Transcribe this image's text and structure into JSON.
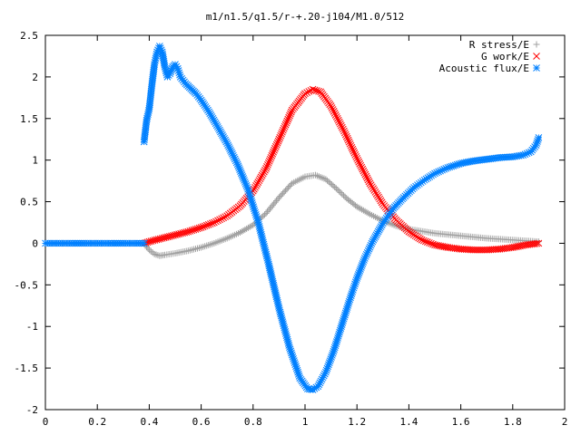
{
  "chart_data": {
    "type": "scatter",
    "title": "m1/n1.5/q1.5/r-+.20-j104/M1.0/512",
    "xlabel": "",
    "ylabel": "",
    "xlim": [
      0,
      2
    ],
    "ylim": [
      -2,
      2.5
    ],
    "grid": false,
    "legend_position": "top-right",
    "x_ticks": [
      "0",
      "0.2",
      "0.4",
      "0.6",
      "0.8",
      "1",
      "1.2",
      "1.4",
      "1.6",
      "1.8",
      "2"
    ],
    "x_tick_values": [
      0,
      0.2,
      0.4,
      0.6,
      0.8,
      1.0,
      1.2,
      1.4,
      1.6,
      1.8,
      2.0
    ],
    "y_ticks": [
      "2.5",
      "2",
      "1.5",
      "1",
      "0.5",
      "0",
      "-0.5",
      "-1",
      "-1.5",
      "-2"
    ],
    "y_tick_values": [
      2.5,
      2.0,
      1.5,
      1.0,
      0.5,
      0.0,
      -0.5,
      -1.0,
      -1.5,
      -2.0
    ],
    "series": [
      {
        "name": "R stress/E",
        "marker": "plus",
        "color": "#a0a0a0",
        "x": [
          0.38,
          0.4,
          0.42,
          0.44,
          0.46,
          0.5,
          0.55,
          0.6,
          0.65,
          0.7,
          0.75,
          0.8,
          0.85,
          0.9,
          0.95,
          1.0,
          1.04,
          1.08,
          1.12,
          1.16,
          1.2,
          1.25,
          1.3,
          1.35,
          1.4,
          1.5,
          1.6,
          1.7,
          1.8,
          1.9
        ],
        "y": [
          0.0,
          -0.08,
          -0.13,
          -0.15,
          -0.14,
          -0.12,
          -0.09,
          -0.05,
          0.0,
          0.06,
          0.13,
          0.22,
          0.36,
          0.55,
          0.72,
          0.8,
          0.82,
          0.77,
          0.66,
          0.54,
          0.44,
          0.35,
          0.27,
          0.21,
          0.17,
          0.12,
          0.09,
          0.06,
          0.04,
          0.02
        ]
      },
      {
        "name": "G work/E",
        "marker": "cross",
        "color": "#ff0000",
        "x": [
          0.38,
          0.4,
          0.45,
          0.5,
          0.55,
          0.6,
          0.65,
          0.7,
          0.75,
          0.8,
          0.85,
          0.9,
          0.95,
          1.0,
          1.03,
          1.06,
          1.1,
          1.15,
          1.2,
          1.25,
          1.3,
          1.35,
          1.4,
          1.45,
          1.5,
          1.55,
          1.6,
          1.65,
          1.7,
          1.75,
          1.8,
          1.85,
          1.9
        ],
        "y": [
          0.0,
          0.02,
          0.06,
          0.1,
          0.14,
          0.19,
          0.25,
          0.33,
          0.45,
          0.63,
          0.9,
          1.25,
          1.6,
          1.8,
          1.85,
          1.82,
          1.65,
          1.35,
          1.02,
          0.72,
          0.47,
          0.28,
          0.14,
          0.04,
          -0.02,
          -0.05,
          -0.07,
          -0.08,
          -0.08,
          -0.07,
          -0.05,
          -0.02,
          0.0
        ]
      },
      {
        "name": "Acoustic flux/E",
        "marker": "star",
        "color": "#0080ff",
        "x": [
          0.0,
          0.05,
          0.1,
          0.15,
          0.2,
          0.25,
          0.3,
          0.35,
          0.38,
          0.39,
          0.4,
          0.41,
          0.42,
          0.43,
          0.44,
          0.45,
          0.46,
          0.47,
          0.48,
          0.49,
          0.5,
          0.51,
          0.52,
          0.54,
          0.56,
          0.58,
          0.6,
          0.63,
          0.66,
          0.7,
          0.74,
          0.78,
          0.82,
          0.86,
          0.9,
          0.94,
          0.98,
          1.01,
          1.03,
          1.05,
          1.08,
          1.11,
          1.14,
          1.17,
          1.2,
          1.23,
          1.26,
          1.3,
          1.34,
          1.38,
          1.42,
          1.46,
          1.5,
          1.55,
          1.6,
          1.65,
          1.7,
          1.75,
          1.8,
          1.84,
          1.87,
          1.89,
          1.9
        ],
        "y": [
          0.0,
          0.0,
          0.0,
          0.0,
          0.0,
          0.0,
          0.0,
          0.0,
          1.22,
          1.48,
          1.62,
          1.9,
          2.15,
          2.3,
          2.37,
          2.3,
          2.12,
          2.0,
          2.04,
          2.12,
          2.15,
          2.1,
          2.0,
          1.92,
          1.86,
          1.8,
          1.72,
          1.58,
          1.42,
          1.2,
          0.95,
          0.65,
          0.25,
          -0.25,
          -0.78,
          -1.25,
          -1.62,
          -1.75,
          -1.76,
          -1.72,
          -1.55,
          -1.3,
          -1.0,
          -0.7,
          -0.42,
          -0.18,
          0.02,
          0.24,
          0.42,
          0.55,
          0.67,
          0.76,
          0.84,
          0.91,
          0.96,
          0.99,
          1.01,
          1.03,
          1.04,
          1.06,
          1.1,
          1.18,
          1.27
        ]
      }
    ]
  }
}
